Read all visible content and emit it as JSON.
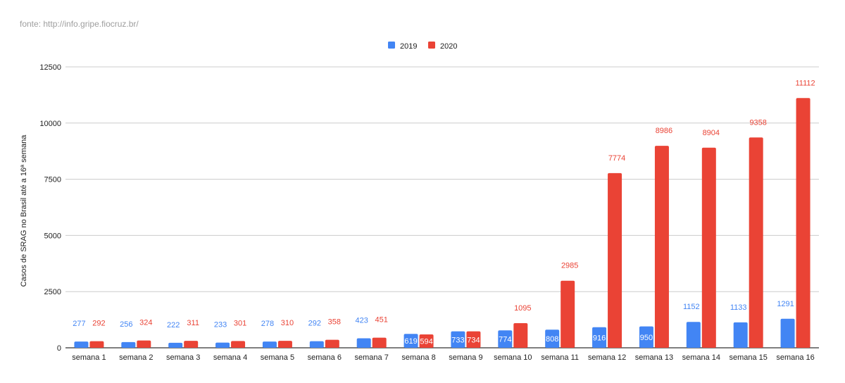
{
  "source_note": "fonte: http://info.gripe.fiocruz.br/",
  "chart_data": {
    "type": "bar",
    "title": "",
    "xlabel": "",
    "ylabel": "Casos de SRAG no Brasil até a 16ª semana",
    "ylim": [
      0,
      12500
    ],
    "yticks": [
      0,
      2500,
      5000,
      7500,
      10000,
      12500
    ],
    "grid": true,
    "legend_position": "top-center",
    "categories": [
      "semana 1",
      "semana 2",
      "semana 3",
      "semana 4",
      "semana 5",
      "semana 6",
      "semana 7",
      "semana 8",
      "semana 9",
      "semana 10",
      "semana 11",
      "semana 12",
      "semana 13",
      "semana 14",
      "semana 15",
      "semana 16"
    ],
    "series": [
      {
        "name": "2019",
        "color": "#4285f4",
        "values": [
          277,
          256,
          222,
          233,
          278,
          292,
          423,
          619,
          733,
          774,
          808,
          916,
          950,
          1152,
          1133,
          1291
        ]
      },
      {
        "name": "2020",
        "color": "#ea4335",
        "values": [
          292,
          324,
          311,
          301,
          310,
          358,
          451,
          594,
          734,
          1095,
          2985,
          7774,
          8986,
          8904,
          9358,
          11112
        ]
      }
    ]
  }
}
